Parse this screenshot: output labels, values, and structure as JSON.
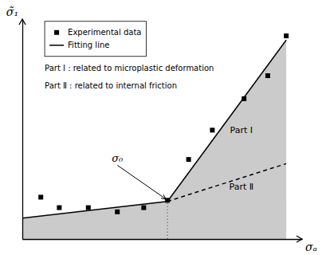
{
  "chart_data": {
    "type": "scatter",
    "xlabel": "σₐ",
    "ylabel": "σ̃₁",
    "xlim": [
      0.0,
      1.06
    ],
    "ylim": [
      0.0,
      1.05
    ],
    "xticks": [],
    "yticks": [],
    "tick_labels": false,
    "legend": "upper left",
    "series": [
      {
        "name": "Experimental data",
        "type": "scatter",
        "marker": "square",
        "color": "#000000",
        "x": [
          0.07,
          0.14,
          0.25,
          0.36,
          0.46,
          0.55,
          0.63,
          0.72,
          0.84,
          0.93,
          1.0
        ],
        "values": [
          0.2,
          0.15,
          0.15,
          0.13,
          0.15,
          0.185,
          0.38,
          0.52,
          0.67,
          0.78,
          0.97
        ]
      },
      {
        "name": "Fitting line",
        "type": "line",
        "line_style": "solid",
        "color": "#000000",
        "x": [
          0.0,
          0.55
        ],
        "values": [
          0.1,
          0.18
        ]
      },
      {
        "type": "line",
        "line_style": "solid",
        "color": "#000000",
        "x": [
          0.55,
          1.0
        ],
        "values": [
          0.18,
          0.95
        ]
      },
      {
        "type": "line",
        "line_style": "dashed",
        "color": "#000000",
        "x": [
          0.55,
          1.0
        ],
        "values": [
          0.18,
          0.36
        ]
      },
      {
        "type": "line",
        "line_style": "dotted",
        "color": "#666666",
        "x": [
          0.55,
          0.55
        ],
        "values": [
          0.0,
          0.18
        ]
      },
      {
        "type": "area",
        "color": "#cbcbcb",
        "x": [
          0.0,
          0.55
        ],
        "values": [
          0.1,
          0.18
        ]
      },
      {
        "type": "area",
        "color": "#cbcbcb",
        "x": [
          0.55,
          1.0
        ],
        "values": [
          0.18,
          0.95
        ]
      }
    ],
    "annotations": [
      {
        "text": "Part  Ⅰ",
        "x": 0.83,
        "y": 0.52
      },
      {
        "text": "Part  Ⅱ",
        "x": 0.83,
        "y": 0.25
      },
      {
        "text": "Part  Ⅰ : related to microplastic deformation"
      },
      {
        "text": "Part  Ⅱ : related to internal friction"
      },
      {
        "text": "σ₀",
        "x": 0.36,
        "y": 0.36,
        "arrow_x": 0.545,
        "arrow_y": 0.19
      }
    ]
  }
}
